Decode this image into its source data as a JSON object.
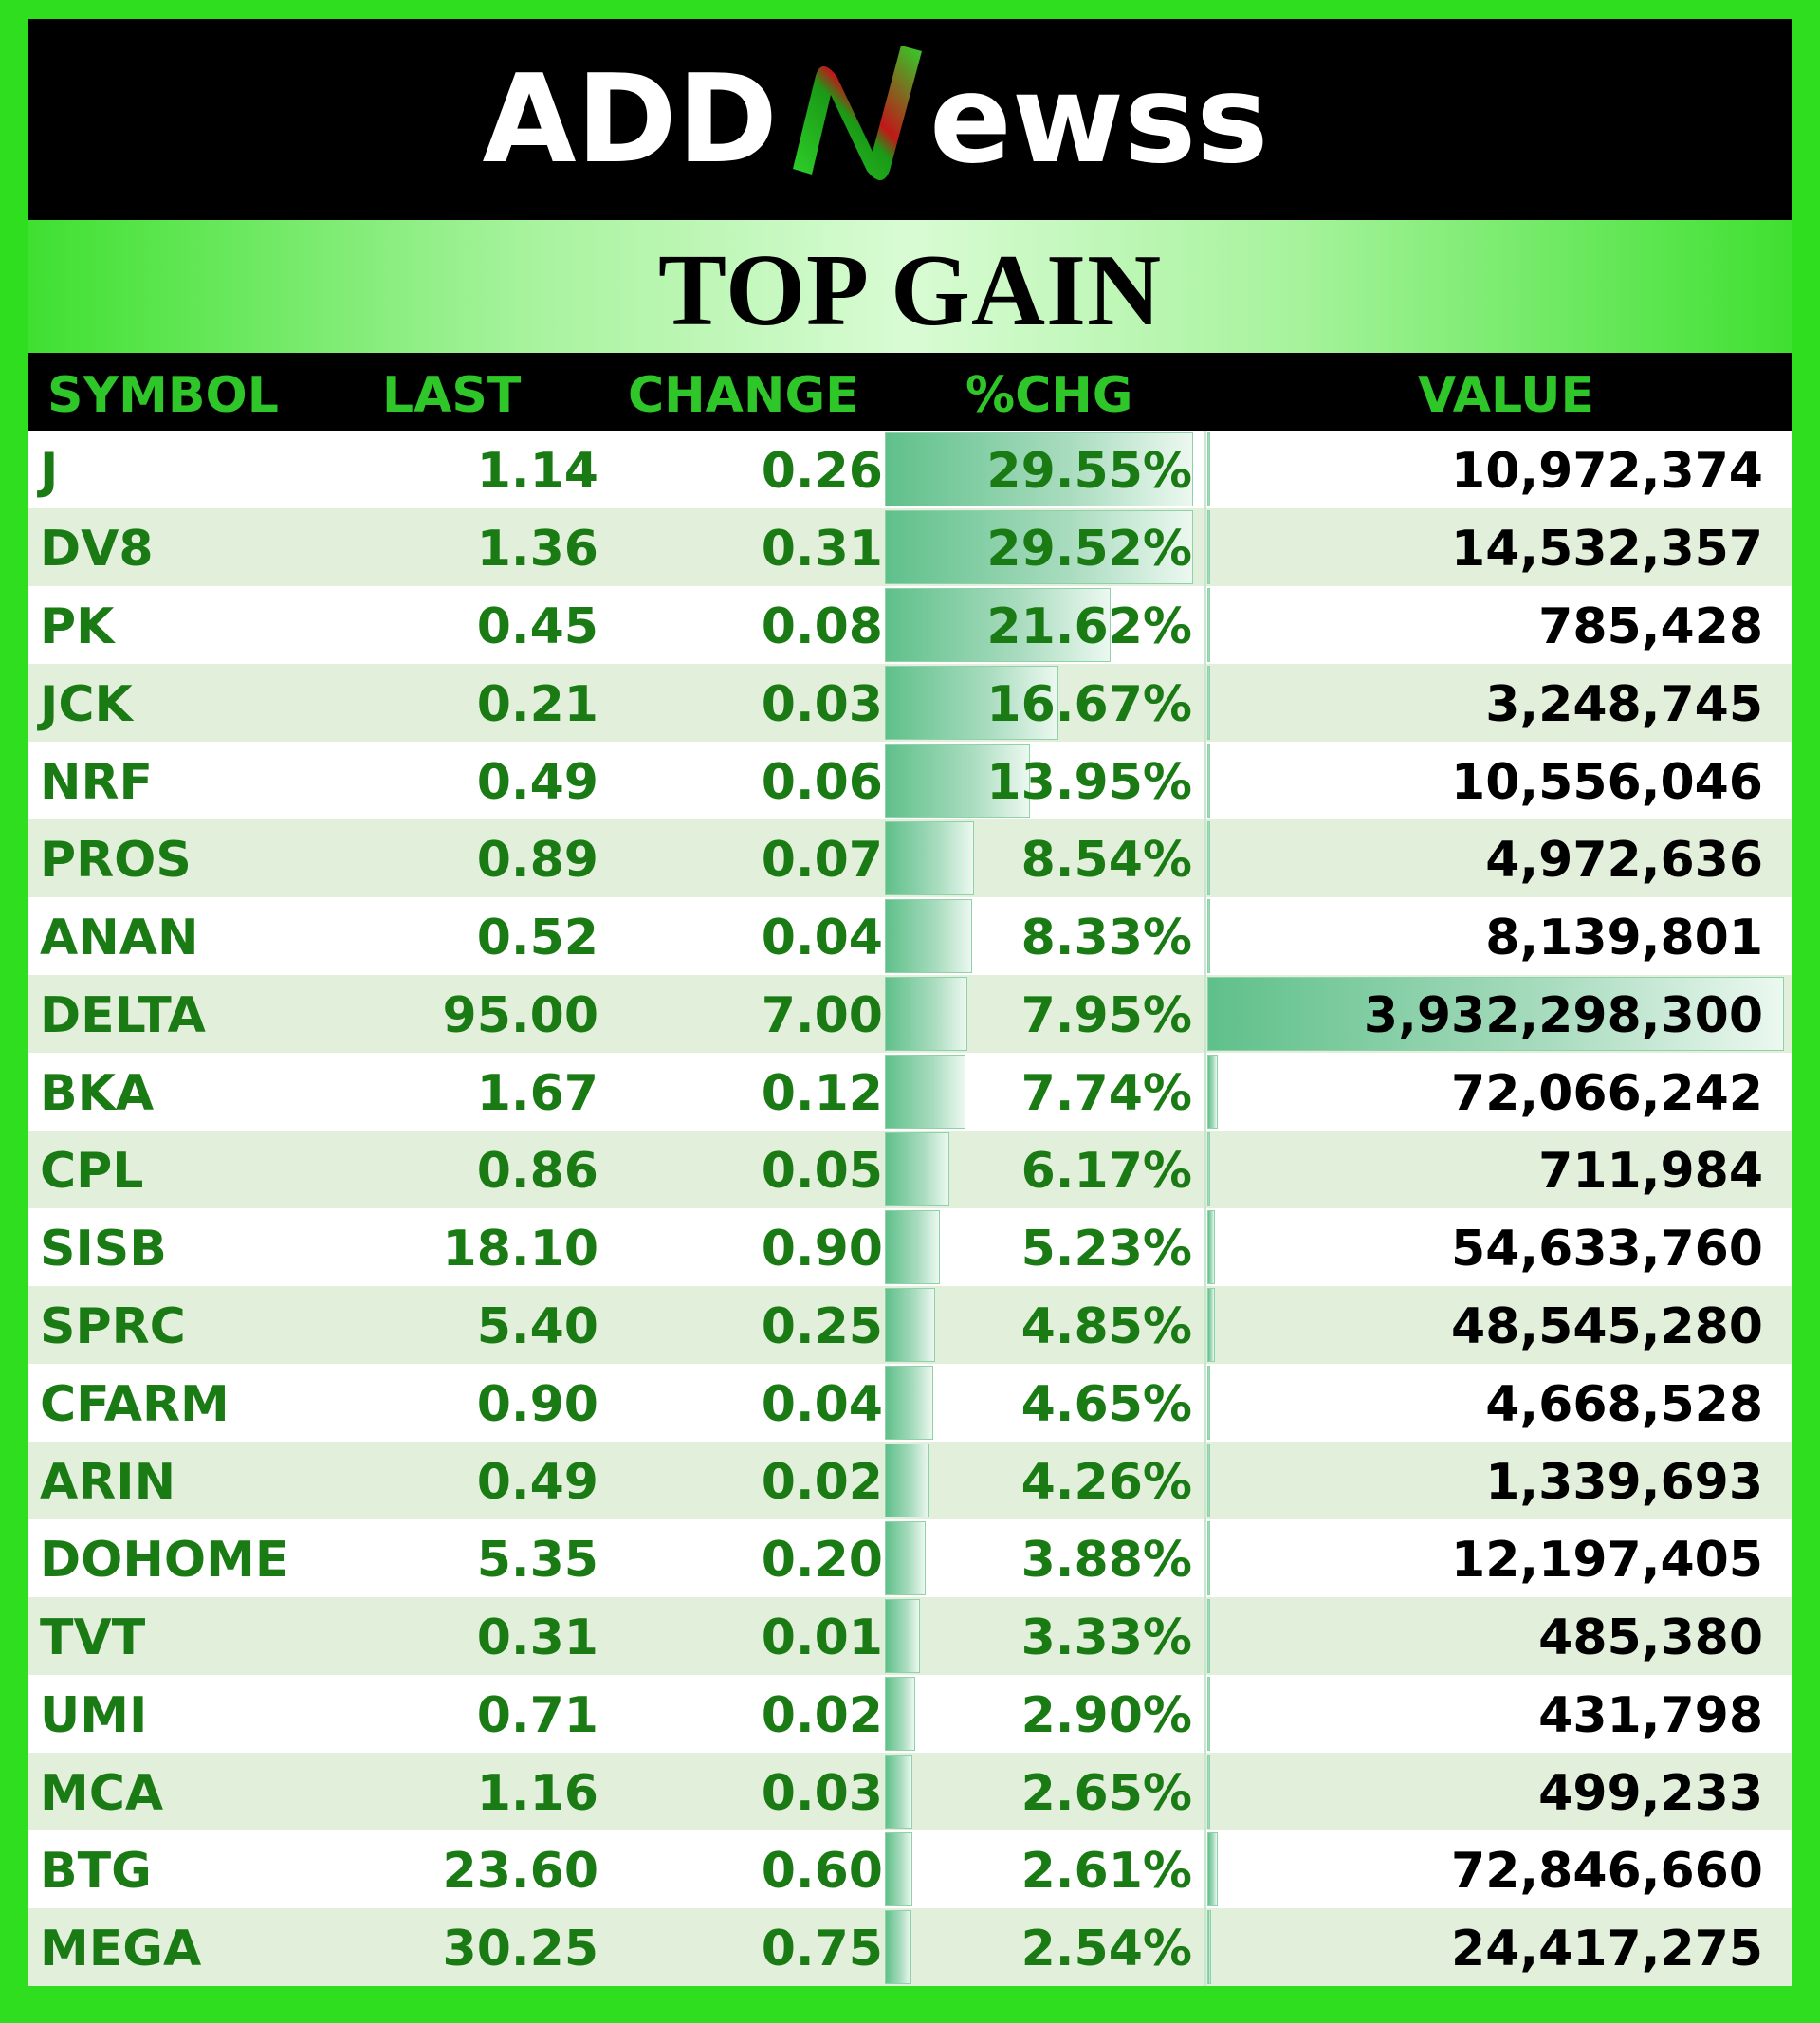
{
  "brand": {
    "logo_text_left": "ADD",
    "logo_text_right": "ewss",
    "logo_letter": "N"
  },
  "banner": {
    "title": "TOP GAIN"
  },
  "table": {
    "columns": [
      "SYMBOL",
      "LAST",
      "CHANGE",
      "%CHG",
      "VALUE"
    ],
    "rows": [
      {
        "symbol": "J",
        "last": "1.14",
        "change": "0.26",
        "pct_chg": "29.55%",
        "value": "10,972,374",
        "pct_num": 29.55,
        "value_num": 10972374
      },
      {
        "symbol": "DV8",
        "last": "1.36",
        "change": "0.31",
        "pct_chg": "29.52%",
        "value": "14,532,357",
        "pct_num": 29.52,
        "value_num": 14532357
      },
      {
        "symbol": "PK",
        "last": "0.45",
        "change": "0.08",
        "pct_chg": "21.62%",
        "value": "785,428",
        "pct_num": 21.62,
        "value_num": 785428
      },
      {
        "symbol": "JCK",
        "last": "0.21",
        "change": "0.03",
        "pct_chg": "16.67%",
        "value": "3,248,745",
        "pct_num": 16.67,
        "value_num": 3248745
      },
      {
        "symbol": "NRF",
        "last": "0.49",
        "change": "0.06",
        "pct_chg": "13.95%",
        "value": "10,556,046",
        "pct_num": 13.95,
        "value_num": 10556046
      },
      {
        "symbol": "PROS",
        "last": "0.89",
        "change": "0.07",
        "pct_chg": "8.54%",
        "value": "4,972,636",
        "pct_num": 8.54,
        "value_num": 4972636
      },
      {
        "symbol": "ANAN",
        "last": "0.52",
        "change": "0.04",
        "pct_chg": "8.33%",
        "value": "8,139,801",
        "pct_num": 8.33,
        "value_num": 8139801
      },
      {
        "symbol": "DELTA",
        "last": "95.00",
        "change": "7.00",
        "pct_chg": "7.95%",
        "value": "3,932,298,300",
        "pct_num": 7.95,
        "value_num": 3932298300
      },
      {
        "symbol": "BKA",
        "last": "1.67",
        "change": "0.12",
        "pct_chg": "7.74%",
        "value": "72,066,242",
        "pct_num": 7.74,
        "value_num": 72066242
      },
      {
        "symbol": "CPL",
        "last": "0.86",
        "change": "0.05",
        "pct_chg": "6.17%",
        "value": "711,984",
        "pct_num": 6.17,
        "value_num": 711984
      },
      {
        "symbol": "SISB",
        "last": "18.10",
        "change": "0.90",
        "pct_chg": "5.23%",
        "value": "54,633,760",
        "pct_num": 5.23,
        "value_num": 54633760
      },
      {
        "symbol": "SPRC",
        "last": "5.40",
        "change": "0.25",
        "pct_chg": "4.85%",
        "value": "48,545,280",
        "pct_num": 4.85,
        "value_num": 48545280
      },
      {
        "symbol": "CFARM",
        "last": "0.90",
        "change": "0.04",
        "pct_chg": "4.65%",
        "value": "4,668,528",
        "pct_num": 4.65,
        "value_num": 4668528
      },
      {
        "symbol": "ARIN",
        "last": "0.49",
        "change": "0.02",
        "pct_chg": "4.26%",
        "value": "1,339,693",
        "pct_num": 4.26,
        "value_num": 1339693
      },
      {
        "symbol": "DOHOME",
        "last": "5.35",
        "change": "0.20",
        "pct_chg": "3.88%",
        "value": "12,197,405",
        "pct_num": 3.88,
        "value_num": 12197405
      },
      {
        "symbol": "TVT",
        "last": "0.31",
        "change": "0.01",
        "pct_chg": "3.33%",
        "value": "485,380",
        "pct_num": 3.33,
        "value_num": 485380
      },
      {
        "symbol": "UMI",
        "last": "0.71",
        "change": "0.02",
        "pct_chg": "2.90%",
        "value": "431,798",
        "pct_num": 2.9,
        "value_num": 431798
      },
      {
        "symbol": "MCA",
        "last": "1.16",
        "change": "0.03",
        "pct_chg": "2.65%",
        "value": "499,233",
        "pct_num": 2.65,
        "value_num": 499233
      },
      {
        "symbol": "BTG",
        "last": "23.60",
        "change": "0.60",
        "pct_chg": "2.61%",
        "value": "72,846,660",
        "pct_num": 2.61,
        "value_num": 72846660
      },
      {
        "symbol": "MEGA",
        "last": "30.25",
        "change": "0.75",
        "pct_chg": "2.54%",
        "value": "24,417,275",
        "pct_num": 2.54,
        "value_num": 24417275
      }
    ]
  },
  "colors": {
    "frame_green": "#2ede1f",
    "header_text_green": "#2fc62a",
    "data_green": "#1a7a14",
    "row_alt": "#e2efda",
    "bar_green": "#5fc08a"
  }
}
